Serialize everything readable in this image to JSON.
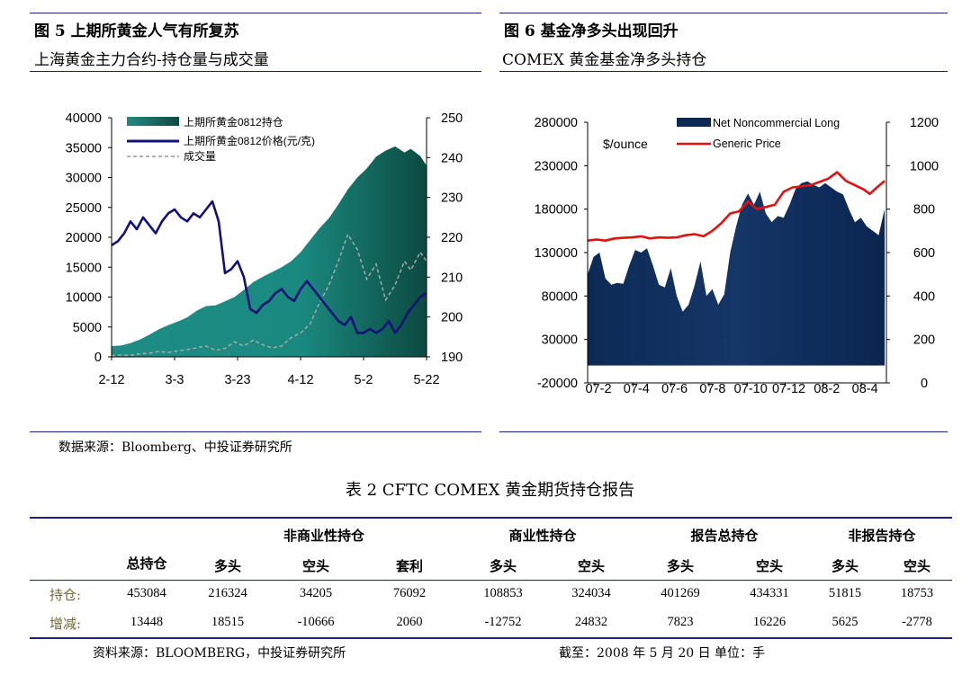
{
  "fig5": {
    "title": "图 5  上期所黄金人气有所复苏",
    "subtitle": "上海黄金主力合约-持仓量与成交量",
    "source": "数据来源：Bloomberg、中投证券研究所"
  },
  "fig6": {
    "title": "图 6  基金净多头出现回升",
    "subtitle": "COMEX 黄金基金净多头持仓"
  },
  "table": {
    "title": "表 2 CFTC COMEX 黄金期货持仓报告",
    "groups": [
      "非商业性持仓",
      "商业性持仓",
      "报告总持仓",
      "非报告持仓"
    ],
    "columns": [
      "总持仓",
      "多头",
      "空头",
      "套利",
      "多头",
      "空头",
      "多头",
      "空头",
      "多头",
      "空头"
    ],
    "rows": [
      {
        "label": "持仓:",
        "values": [
          "453084",
          "216324",
          "34205",
          "76092",
          "108853",
          "324034",
          "401269",
          "434331",
          "51815",
          "18753"
        ]
      },
      {
        "label": "增减:",
        "values": [
          "13448",
          "18515",
          "-10666",
          "2060",
          "-12752",
          "24832",
          "7823",
          "16226",
          "5625",
          "-2778"
        ]
      }
    ],
    "source": "资料来源：BLOOMBERG，中投证券研究所",
    "note": "截至：2008 年 5 月 20 日  单位：手"
  },
  "chart_data": [
    {
      "type": "area",
      "title": "上海黄金主力合约-持仓量与成交量",
      "x_ticks": [
        "2-12",
        "3-3",
        "3-23",
        "4-12",
        "5-2",
        "5-22"
      ],
      "y_left_ticks": [
        "0",
        "5000",
        "10000",
        "15000",
        "20000",
        "25000",
        "30000",
        "35000",
        "40000"
      ],
      "y_right_ticks": [
        "190",
        "200",
        "210",
        "220",
        "230",
        "240",
        "250"
      ],
      "ylim_left": [
        0,
        40000
      ],
      "ylim_right": [
        190,
        250
      ],
      "legend": [
        "上期所黄金0812持仓",
        "上期所黄金0812价格(元/克)",
        "成交量"
      ],
      "series": [
        {
          "name": "上期所黄金0812持仓",
          "axis": "left",
          "x": [
            0,
            3,
            6,
            9,
            12,
            15,
            18,
            21,
            24,
            27,
            30,
            33,
            36,
            39,
            42,
            45,
            48,
            51,
            54,
            57,
            60,
            63,
            66,
            69,
            72,
            75,
            78,
            81,
            84,
            87,
            90,
            93,
            95,
            98,
            100
          ],
          "values": [
            1800,
            1900,
            2300,
            2900,
            3700,
            4600,
            5300,
            5900,
            6600,
            7700,
            8500,
            8600,
            9300,
            10000,
            11200,
            12500,
            13400,
            14200,
            15000,
            16000,
            17500,
            19500,
            21500,
            23200,
            25500,
            28000,
            30000,
            31500,
            33500,
            34500,
            35200,
            34200,
            34800,
            33600,
            32000
          ]
        },
        {
          "name": "上期所黄金0812价格(元/克)",
          "axis": "right",
          "x": [
            0,
            2,
            4,
            6,
            8,
            10,
            12,
            14,
            16,
            18,
            20,
            22,
            24,
            26,
            28,
            30,
            32,
            34,
            36,
            38,
            40,
            42,
            44,
            46,
            48,
            50,
            52,
            54,
            56,
            58,
            60,
            62,
            64,
            66,
            68,
            70,
            72,
            74,
            76,
            78,
            80,
            82,
            84,
            86,
            88,
            90,
            92,
            94,
            96,
            98,
            100
          ],
          "values": [
            218,
            219,
            221,
            224,
            222,
            225,
            223,
            221,
            224,
            226,
            227,
            225,
            224,
            226,
            225,
            227,
            229,
            224,
            211,
            212,
            214,
            210,
            202,
            201,
            203,
            204,
            206,
            207,
            205,
            204,
            207,
            209,
            207,
            205,
            203,
            201,
            199,
            198,
            200,
            196,
            196,
            197,
            196,
            197,
            199,
            196,
            198,
            201,
            203,
            205,
            206
          ]
        },
        {
          "name": "成交量",
          "axis": "left",
          "x": [
            0,
            3,
            6,
            9,
            12,
            15,
            18,
            21,
            24,
            27,
            30,
            33,
            36,
            39,
            42,
            45,
            48,
            51,
            54,
            57,
            60,
            63,
            66,
            69,
            72,
            75,
            78,
            81,
            84,
            87,
            90,
            93,
            95,
            98,
            100
          ],
          "values": [
            200,
            300,
            250,
            500,
            600,
            900,
            700,
            1000,
            1200,
            1500,
            1800,
            1100,
            1400,
            2500,
            1800,
            2800,
            2000,
            1500,
            1800,
            3200,
            4000,
            5500,
            9000,
            12000,
            16000,
            20500,
            18000,
            13000,
            15500,
            9500,
            12000,
            16000,
            14500,
            17500,
            16000
          ]
        }
      ]
    },
    {
      "type": "area",
      "title": "COMEX 黄金基金净多头持仓",
      "ylabel": "$/ounce",
      "x_ticks": [
        "07-2",
        "07-4",
        "07-6",
        "07-8",
        "07-10",
        "07-12",
        "08-2",
        "08-4"
      ],
      "y_left_ticks": [
        "-20000",
        "30000",
        "80000",
        "130000",
        "180000",
        "230000",
        "280000"
      ],
      "y_right_ticks": [
        "0",
        "200",
        "400",
        "600",
        "800",
        "1000",
        "1200"
      ],
      "ylim_left": [
        -20000,
        280000
      ],
      "ylim_right": [
        0,
        1200
      ],
      "legend": [
        "Net Noncommercial Long",
        "Generic Price"
      ],
      "series": [
        {
          "name": "Net Noncommercial Long",
          "axis": "left",
          "x": [
            0,
            2,
            4,
            6,
            8,
            10,
            12,
            14,
            16,
            18,
            20,
            22,
            24,
            26,
            28,
            30,
            32,
            34,
            36,
            38,
            40,
            42,
            44,
            46,
            48,
            50,
            52,
            54,
            56,
            58,
            60,
            62,
            64,
            66,
            68,
            70,
            72,
            74,
            76,
            78,
            80,
            82,
            84,
            86,
            88,
            90,
            92,
            94,
            96,
            98,
            100
          ],
          "values": [
            105000,
            125000,
            130000,
            100000,
            93000,
            95000,
            94000,
            115000,
            133000,
            130000,
            135000,
            115000,
            93000,
            90000,
            112000,
            80000,
            62000,
            70000,
            92000,
            120000,
            80000,
            88000,
            70000,
            82000,
            130000,
            160000,
            185000,
            198000,
            185000,
            200000,
            175000,
            165000,
            172000,
            170000,
            185000,
            203000,
            210000,
            212000,
            208000,
            205000,
            210000,
            205000,
            200000,
            197000,
            180000,
            165000,
            170000,
            160000,
            155000,
            150000,
            180000
          ]
        },
        {
          "name": "Generic Price",
          "axis": "right",
          "x": [
            0,
            3,
            6,
            9,
            12,
            15,
            18,
            21,
            24,
            27,
            30,
            33,
            36,
            39,
            42,
            45,
            48,
            51,
            54,
            57,
            60,
            63,
            66,
            69,
            72,
            75,
            78,
            81,
            84,
            87,
            90,
            93,
            95,
            97,
            100
          ],
          "values": [
            655,
            660,
            655,
            665,
            668,
            670,
            675,
            665,
            670,
            668,
            670,
            680,
            685,
            675,
            700,
            735,
            780,
            790,
            835,
            800,
            810,
            820,
            880,
            900,
            905,
            910,
            925,
            940,
            970,
            930,
            910,
            890,
            870,
            895,
            930
          ]
        }
      ]
    }
  ]
}
